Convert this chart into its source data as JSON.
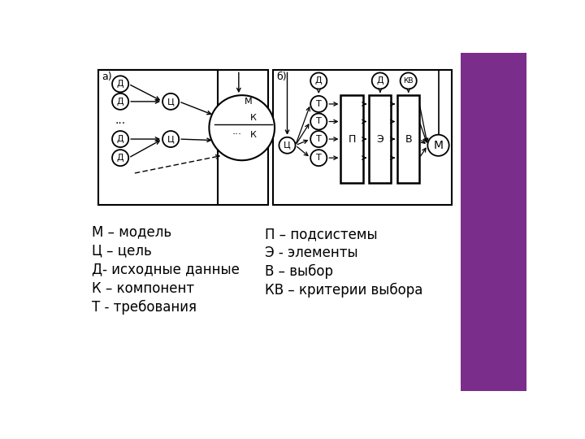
{
  "bg_color": "#ffffff",
  "purple_color": "#7B2D8B",
  "label_a": "а)",
  "label_b": "б)",
  "legend_left": [
    "М – модель",
    "Ц – цель",
    "Д- исходные данные",
    "К – компонент",
    "Т - требования"
  ],
  "legend_right": [
    "П – подсистемы",
    "Э - элементы",
    "В – выбор",
    "КВ – критерии выбора"
  ]
}
